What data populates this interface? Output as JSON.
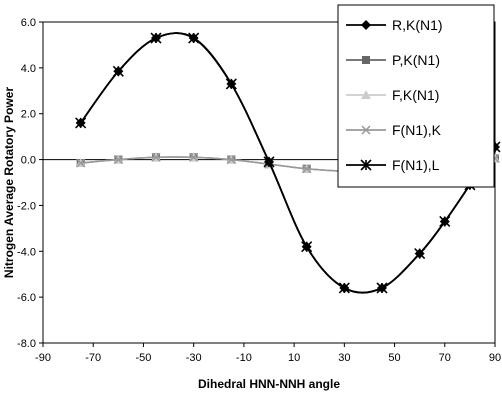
{
  "chart_data": {
    "type": "line",
    "xlabel": "Dihedral HNN-NNH angle",
    "ylabel": "Nitrogen Average Rotatory Power",
    "xlim": [
      -90,
      90
    ],
    "ylim": [
      -8.0,
      6.0
    ],
    "xticks": [
      -90,
      -70,
      -50,
      -30,
      -10,
      10,
      30,
      50,
      70,
      90
    ],
    "xtick_labels": [
      "-90",
      "-70",
      "-50",
      "-30",
      "-10",
      "10",
      "30",
      "50",
      "70",
      "90"
    ],
    "yticks": [
      -8,
      -6,
      -4,
      -2,
      0,
      2,
      4,
      6
    ],
    "ytick_labels": [
      "-8.0",
      "-6.0",
      "-4.0",
      "-2.0",
      "0.0",
      "2.0",
      "4.0",
      "6.0"
    ],
    "grid": false,
    "legend_position": "top-right",
    "x": [
      -75,
      -60,
      -45,
      -30,
      -15,
      0,
      15,
      30,
      45,
      60,
      70,
      80,
      90
    ],
    "series": [
      {
        "name": "R,K(N1)",
        "marker": "diamond",
        "color": "#000000",
        "values": [
          1.6,
          3.85,
          5.3,
          5.3,
          3.3,
          -0.1,
          -3.8,
          -5.6,
          -5.6,
          -4.1,
          -2.7,
          -1.1,
          0.55
        ]
      },
      {
        "name": "P,K(N1)",
        "marker": "square",
        "color": "#666666",
        "values": [
          -0.15,
          0.0,
          0.1,
          0.1,
          0.0,
          -0.2,
          -0.4,
          -0.5,
          -0.45,
          -0.3,
          -0.25,
          -0.1,
          0.05
        ]
      },
      {
        "name": "F,K(N1)",
        "marker": "triangle",
        "color": "#cccccc",
        "values": [
          -0.15,
          0.0,
          0.1,
          0.1,
          0.0,
          -0.2,
          -0.4,
          -0.5,
          -0.45,
          -0.3,
          -0.25,
          -0.1,
          0.05
        ]
      },
      {
        "name": "F(N1),K",
        "marker": "x",
        "color": "#999999",
        "values": [
          -0.15,
          0.0,
          0.1,
          0.1,
          0.0,
          -0.2,
          -0.4,
          -0.5,
          -0.45,
          -0.3,
          -0.25,
          -0.1,
          0.05
        ]
      },
      {
        "name": "F(N1),L",
        "marker": "star",
        "color": "#000000",
        "values": [
          1.6,
          3.85,
          5.3,
          5.3,
          3.3,
          -0.1,
          -3.8,
          -5.6,
          -5.6,
          -4.1,
          -2.7,
          -1.1,
          0.55
        ]
      }
    ]
  }
}
